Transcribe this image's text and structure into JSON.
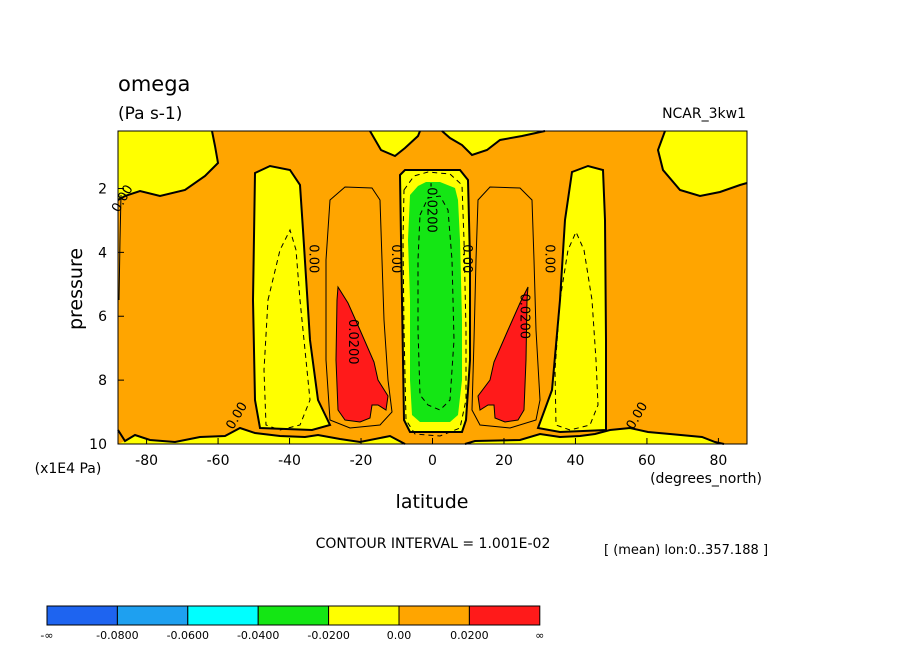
{
  "chart_data": {
    "type": "contour",
    "title": "omega",
    "units": "(Pa s-1)",
    "dataset": "NCAR_3kw1",
    "xlabel": "latitude",
    "x_units": "(degrees_north)",
    "ylabel": "pressure",
    "y_units": "(x1E4 Pa)",
    "xlim": [
      -88,
      88
    ],
    "ylim": [
      10,
      0.2
    ],
    "x_ticks": [
      -80,
      -60,
      -40,
      -20,
      0,
      20,
      40,
      60,
      80
    ],
    "y_ticks": [
      2,
      4,
      6,
      8,
      10
    ],
    "contour_interval_label": "CONTOUR INTERVAL = 1.001E-02",
    "mean_label": "[ (mean) lon:0..357.188 ]",
    "contour_labels": [
      {
        "text": "0.00",
        "x": -87,
        "y": 2.3
      },
      {
        "text": "0.00",
        "x": -33,
        "y": 4.2
      },
      {
        "text": "0.00",
        "x": -10,
        "y": 4.2
      },
      {
        "text": "0.00",
        "x": 10,
        "y": 4.2
      },
      {
        "text": "0.00",
        "x": 33,
        "y": 4.2
      },
      {
        "text": "0.00",
        "x": -55,
        "y": 9.1
      },
      {
        "text": "0.00",
        "x": 57,
        "y": 9.1
      },
      {
        "text": "-0.0200",
        "x": 0,
        "y": 2.6
      },
      {
        "text": "0.0200",
        "x": -22,
        "y": 6.8
      },
      {
        "text": "0.0200",
        "x": 26,
        "y": 6.0
      }
    ],
    "colorbar": {
      "levels": [
        "-∞",
        "-0.0800",
        "-0.0600",
        "-0.0400",
        "-0.0200",
        "0.00",
        "0.0200",
        "∞"
      ],
      "colors": [
        "#1e64f0",
        "#1ea0f0",
        "#00ffff",
        "#14e614",
        "#ffff00",
        "#ffa500",
        "#ff1a1a"
      ]
    },
    "fill_colors": {
      "neg_strong": "#14e614",
      "neg_weak": "#ffff00",
      "pos_weak": "#ffa500",
      "pos_strong": "#ff1a1a"
    }
  }
}
